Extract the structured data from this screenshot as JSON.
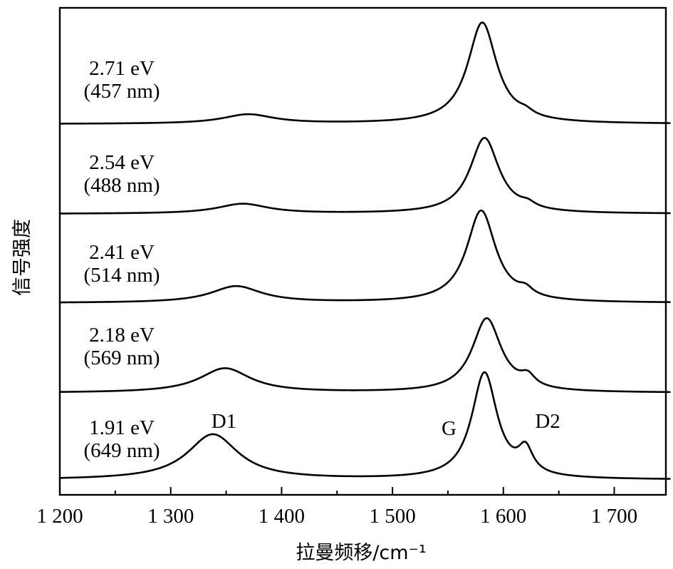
{
  "chart_data": {
    "type": "line",
    "title": "",
    "xlabel": "拉曼频移/cm⁻¹",
    "ylabel": "信号强度",
    "xlim": [
      1200,
      1750
    ],
    "xticks": [
      1200,
      1250,
      1300,
      1350,
      1400,
      1450,
      1500,
      1550,
      1600,
      1650,
      1700
    ],
    "xtick_labels": [
      "1 200",
      "1 300",
      "1 400",
      "1 500",
      "1 600",
      "1 700"
    ],
    "xtick_label_values": [
      1200,
      1300,
      1400,
      1500,
      1600,
      1700
    ],
    "grid": false,
    "legend": "none",
    "stacked_offset": true,
    "series": [
      {
        "energy_label": "2.71 eV",
        "wavelength_label": "(457 nm)",
        "baseline": 0.02,
        "peaks": [
          {
            "center": 1370,
            "width": 28,
            "height": 0.09
          },
          {
            "center": 1581,
            "width": 16,
            "height": 0.98
          },
          {
            "center": 1620,
            "width": 8,
            "height": 0.04
          }
        ]
      },
      {
        "energy_label": "2.54 eV",
        "wavelength_label": "(488 nm)",
        "baseline": 0.02,
        "peaks": [
          {
            "center": 1365,
            "width": 28,
            "height": 0.11
          },
          {
            "center": 1583,
            "width": 16,
            "height": 0.85
          },
          {
            "center": 1622,
            "width": 8,
            "height": 0.05
          }
        ]
      },
      {
        "energy_label": "2.41 eV",
        "wavelength_label": "(514 nm)",
        "baseline": 0.02,
        "peaks": [
          {
            "center": 1359,
            "width": 28,
            "height": 0.17
          },
          {
            "center": 1580,
            "width": 16,
            "height": 0.95
          },
          {
            "center": 1620,
            "width": 8,
            "height": 0.07
          }
        ]
      },
      {
        "energy_label": "2.18 eV",
        "wavelength_label": "(569 nm)",
        "baseline": 0.02,
        "peaks": [
          {
            "center": 1349,
            "width": 28,
            "height": 0.28
          },
          {
            "center": 1585,
            "width": 16,
            "height": 0.85
          },
          {
            "center": 1622,
            "width": 8,
            "height": 0.12
          }
        ]
      },
      {
        "energy_label": "1.91 eV",
        "wavelength_label": "(649 nm)",
        "baseline": 0.02,
        "peaks": [
          {
            "center": 1338,
            "width": 28,
            "height": 0.41
          },
          {
            "center": 1583,
            "width": 14,
            "height": 0.96
          },
          {
            "center": 1620,
            "width": 8,
            "height": 0.22
          }
        ]
      }
    ],
    "peak_labels": [
      {
        "text": "D1",
        "x": 1348
      },
      {
        "text": "G",
        "x": 1551
      },
      {
        "text": "D2",
        "x": 1640
      }
    ]
  }
}
